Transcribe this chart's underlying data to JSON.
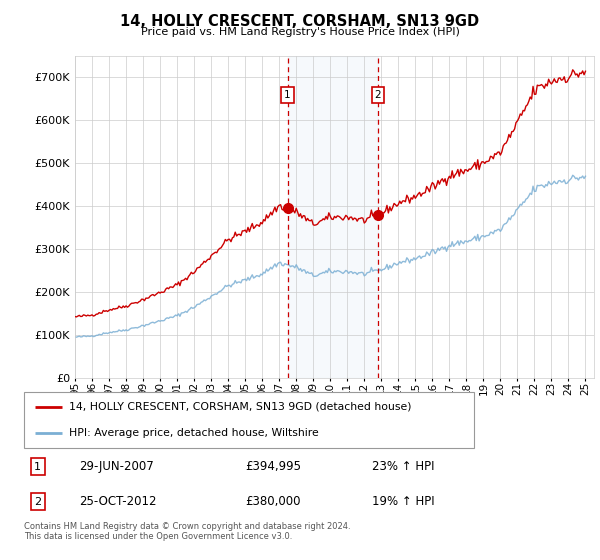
{
  "title": "14, HOLLY CRESCENT, CORSHAM, SN13 9GD",
  "subtitle": "Price paid vs. HM Land Registry's House Price Index (HPI)",
  "footer": "Contains HM Land Registry data © Crown copyright and database right 2024.\nThis data is licensed under the Open Government Licence v3.0.",
  "legend_line1": "14, HOLLY CRESCENT, CORSHAM, SN13 9GD (detached house)",
  "legend_line2": "HPI: Average price, detached house, Wiltshire",
  "transaction1_date": "29-JUN-2007",
  "transaction1_price": "£394,995",
  "transaction1_hpi": "23% ↑ HPI",
  "transaction2_date": "25-OCT-2012",
  "transaction2_price": "£380,000",
  "transaction2_hpi": "19% ↑ HPI",
  "transaction1_x": 2007.49,
  "transaction1_y": 394995,
  "transaction2_x": 2012.81,
  "transaction2_y": 380000,
  "vline1_x": 2007.49,
  "vline2_x": 2012.81,
  "shade_xmin": 2007.49,
  "shade_xmax": 2012.81,
  "hpi_color": "#7bafd4",
  "price_color": "#cc0000",
  "background_color": "#ffffff",
  "grid_color": "#cccccc",
  "xlim": [
    1995.0,
    2025.5
  ],
  "ylim": [
    0,
    750000
  ],
  "yticks": [
    0,
    100000,
    200000,
    300000,
    400000,
    500000,
    600000,
    700000
  ],
  "ytick_labels": [
    "£0",
    "£100K",
    "£200K",
    "£300K",
    "£400K",
    "£500K",
    "£600K",
    "£700K"
  ],
  "xtick_years": [
    1995,
    1996,
    1997,
    1998,
    1999,
    2000,
    2001,
    2002,
    2003,
    2004,
    2005,
    2006,
    2007,
    2008,
    2009,
    2010,
    2011,
    2012,
    2013,
    2014,
    2015,
    2016,
    2017,
    2018,
    2019,
    2020,
    2021,
    2022,
    2023,
    2024,
    2025
  ],
  "xtick_labels": [
    "95",
    "96",
    "97",
    "98",
    "99",
    "00",
    "01",
    "02",
    "03",
    "04",
    "05",
    "06",
    "07",
    "08",
    "09",
    "10",
    "11",
    "12",
    "13",
    "14",
    "15",
    "16",
    "17",
    "18",
    "19",
    "20",
    "21",
    "22",
    "23",
    "24",
    "25"
  ]
}
